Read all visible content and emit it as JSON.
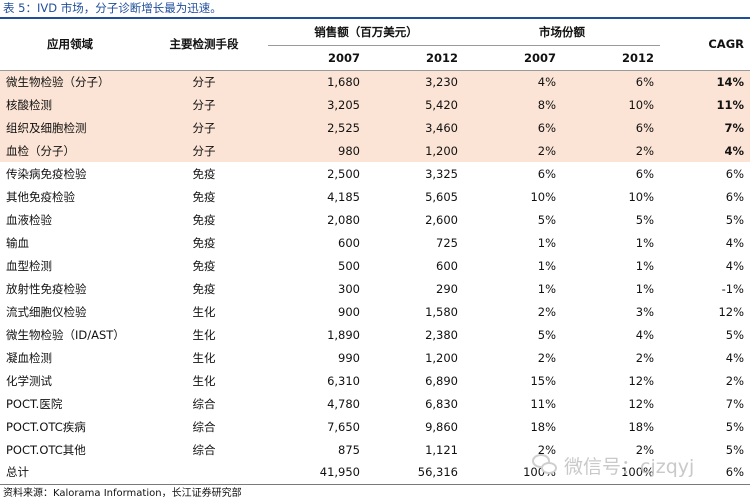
{
  "title": "表 5：IVD 市场，分子诊断增长最为迅速。",
  "header": {
    "col_field": "应用领域",
    "col_method": "主要检测手段",
    "group_sales": "销售额（百万美元）",
    "group_share": "市场份额",
    "col_cagr": "CAGR",
    "sales_2007": "2007",
    "sales_2012": "2012",
    "share_2007": "2007",
    "share_2012": "2012"
  },
  "rows": [
    {
      "field": "微生物检验（分子）",
      "method": "分子",
      "s2007": "1,680",
      "s2012": "3,230",
      "m2007": "4%",
      "m2012": "6%",
      "cagr": "14%",
      "highlight": true
    },
    {
      "field": "核酸检测",
      "method": "分子",
      "s2007": "3,205",
      "s2012": "5,420",
      "m2007": "8%",
      "m2012": "10%",
      "cagr": "11%",
      "highlight": true
    },
    {
      "field": "组织及细胞检测",
      "method": "分子",
      "s2007": "2,525",
      "s2012": "3,460",
      "m2007": "6%",
      "m2012": "6%",
      "cagr": "7%",
      "highlight": true
    },
    {
      "field": "血检（分子）",
      "method": "分子",
      "s2007": "980",
      "s2012": "1,200",
      "m2007": "2%",
      "m2012": "2%",
      "cagr": "4%",
      "highlight": true
    },
    {
      "field": "传染病免疫检验",
      "method": "免疫",
      "s2007": "2,500",
      "s2012": "3,325",
      "m2007": "6%",
      "m2012": "6%",
      "cagr": "6%",
      "highlight": false
    },
    {
      "field": "其他免疫检验",
      "method": "免疫",
      "s2007": "4,185",
      "s2012": "5,605",
      "m2007": "10%",
      "m2012": "10%",
      "cagr": "6%",
      "highlight": false
    },
    {
      "field": "血液检验",
      "method": "免疫",
      "s2007": "2,080",
      "s2012": "2,600",
      "m2007": "5%",
      "m2012": "5%",
      "cagr": "5%",
      "highlight": false
    },
    {
      "field": "输血",
      "method": "免疫",
      "s2007": "600",
      "s2012": "725",
      "m2007": "1%",
      "m2012": "1%",
      "cagr": "4%",
      "highlight": false
    },
    {
      "field": "血型检测",
      "method": "免疫",
      "s2007": "500",
      "s2012": "600",
      "m2007": "1%",
      "m2012": "1%",
      "cagr": "4%",
      "highlight": false
    },
    {
      "field": "放射性免疫检验",
      "method": "免疫",
      "s2007": "300",
      "s2012": "290",
      "m2007": "1%",
      "m2012": "1%",
      "cagr": "-1%",
      "highlight": false
    },
    {
      "field": "流式细胞仪检验",
      "method": "生化",
      "s2007": "900",
      "s2012": "1,580",
      "m2007": "2%",
      "m2012": "3%",
      "cagr": "12%",
      "highlight": false
    },
    {
      "field": "微生物检验（ID/AST）",
      "method": "生化",
      "s2007": "1,890",
      "s2012": "2,380",
      "m2007": "5%",
      "m2012": "4%",
      "cagr": "5%",
      "highlight": false
    },
    {
      "field": "凝血检测",
      "method": "生化",
      "s2007": "990",
      "s2012": "1,200",
      "m2007": "2%",
      "m2012": "2%",
      "cagr": "4%",
      "highlight": false
    },
    {
      "field": "化学测试",
      "method": "生化",
      "s2007": "6,310",
      "s2012": "6,890",
      "m2007": "15%",
      "m2012": "12%",
      "cagr": "2%",
      "highlight": false
    },
    {
      "field": "POCT.医院",
      "method": "综合",
      "s2007": "4,780",
      "s2012": "6,830",
      "m2007": "11%",
      "m2012": "12%",
      "cagr": "7%",
      "highlight": false
    },
    {
      "field": "POCT.OTC疾病",
      "method": "综合",
      "s2007": "7,650",
      "s2012": "9,860",
      "m2007": "18%",
      "m2012": "18%",
      "cagr": "5%",
      "highlight": false
    },
    {
      "field": "POCT.OTC其他",
      "method": "综合",
      "s2007": "875",
      "s2012": "1,121",
      "m2007": "2%",
      "m2012": "2%",
      "cagr": "5%",
      "highlight": false
    }
  ],
  "total": {
    "field": "总计",
    "method": "",
    "s2007": "41,950",
    "s2012": "56,316",
    "m2007": "100%",
    "m2012": "100%",
    "cagr": "6%"
  },
  "source": "资料来源：Kalorama Information，长江证券研究部",
  "watermark": "微信号：cjzqyj"
}
